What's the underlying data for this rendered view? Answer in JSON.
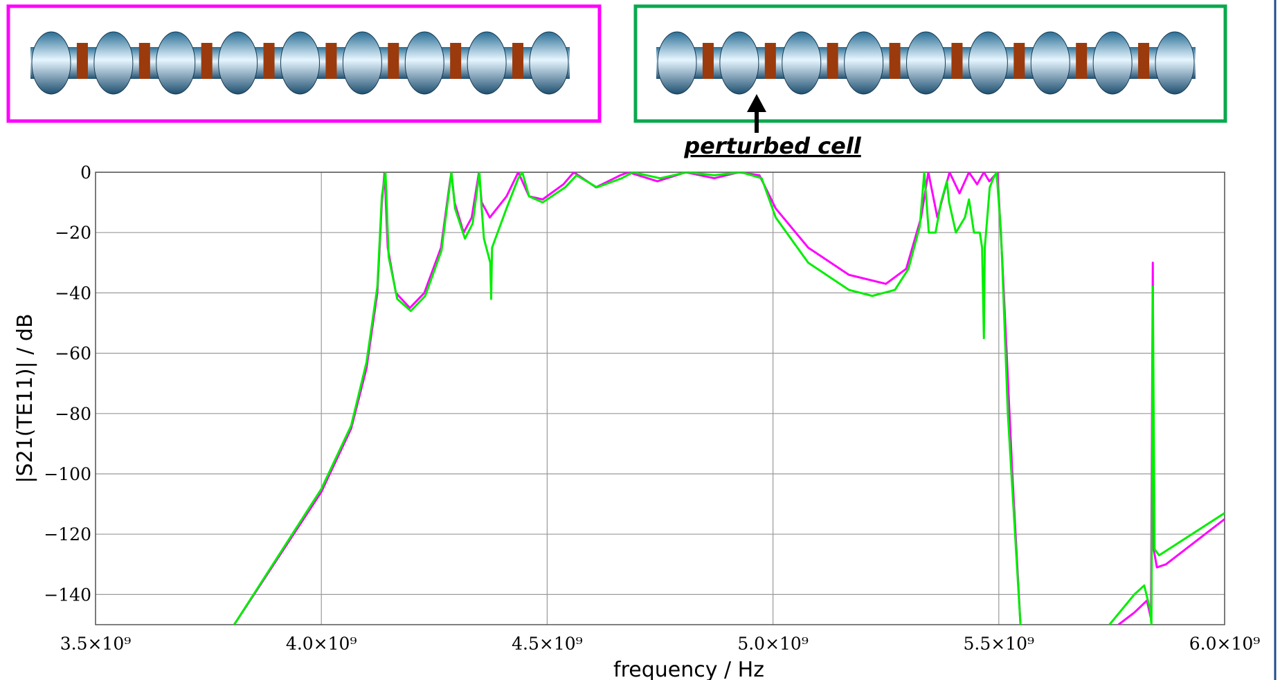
{
  "chart_data": {
    "type": "line",
    "annotations": [
      "perturbed cell"
    ],
    "x_label": "frequency / Hz",
    "y_label": "|S21(TE11)| / dB",
    "xlim": [
      3500000000.0,
      6000000000.0
    ],
    "ylim": [
      -150,
      0
    ],
    "xticks": [
      {
        "value": 3500000000.0,
        "label": "3.5×10⁹"
      },
      {
        "value": 4000000000.0,
        "label": "4.0×10⁹"
      },
      {
        "value": 4500000000.0,
        "label": "4.5×10⁹"
      },
      {
        "value": 5000000000.0,
        "label": "5.0×10⁹"
      },
      {
        "value": 5500000000.0,
        "label": "5.5×10⁹"
      },
      {
        "value": 6000000000.0,
        "label": "6.0×10⁹"
      }
    ],
    "yticks": [
      {
        "value": 0,
        "label": "0"
      },
      {
        "value": -20,
        "label": "−20"
      },
      {
        "value": -40,
        "label": "−40"
      },
      {
        "value": -60,
        "label": "−60"
      },
      {
        "value": -80,
        "label": "−80"
      },
      {
        "value": -100,
        "label": "−100"
      },
      {
        "value": -120,
        "label": "−120"
      },
      {
        "value": -140,
        "label": "−140"
      }
    ],
    "grid": true,
    "series": [
      {
        "color": "#ff00ff",
        "x": [
          3807000000.0,
          4000000000.0,
          4066000000.0,
          4100000000.0,
          4124000000.0,
          4134000000.0,
          4140000000.0,
          4147000000.0,
          4165000000.0,
          4196000000.0,
          4228000000.0,
          4265000000.0,
          4283000000.0,
          4288000000.0,
          4295000000.0,
          4315000000.0,
          4333000000.0,
          4349000000.0,
          4355000000.0,
          4373000000.0,
          4410000000.0,
          4436000000.0,
          4460000000.0,
          4490000000.0,
          4536000000.0,
          4559000000.0,
          4608000000.0,
          4662000000.0,
          4680000000.0,
          4744000000.0,
          4807000000.0,
          4870000000.0,
          4924000000.0,
          4970000000.0,
          5006000000.0,
          5078000000.0,
          5168000000.0,
          5250000000.0,
          5295000000.0,
          5328000000.0,
          5344000000.0,
          5364000000.0,
          5391000000.0,
          5413000000.0,
          5434000000.0,
          5452000000.0,
          5467000000.0,
          5479000000.0,
          5497000000.0,
          5508000000.0,
          5530000000.0,
          5548000000.0,
          5650000000.0,
          5765000000.0,
          5800000000.0,
          5828000000.0,
          5837000000.0,
          5841000000.0,
          5843000000.0,
          5850000000.0,
          5870000000.0,
          6000000000.0
        ],
        "values": [
          -150,
          -106,
          -85,
          -65,
          -40,
          -10,
          0,
          -25,
          -40,
          -45,
          -40,
          -25,
          -5,
          0,
          -10,
          -20,
          -15,
          0,
          -10,
          -15,
          -8,
          0,
          -8,
          -9,
          -4,
          0,
          -5,
          -1,
          0,
          -3,
          0,
          -2,
          0,
          -1,
          -12,
          -25,
          -34,
          -37,
          -32,
          -15,
          0,
          -15,
          0,
          -7,
          0,
          -4,
          0,
          -3,
          0,
          -30,
          -100,
          -150,
          null,
          -150,
          -146,
          -142,
          -148,
          -30,
          -125,
          -131,
          -130,
          -115
        ]
      },
      {
        "color": "#00ee00",
        "x": [
          3807000000.0,
          4000000000.0,
          4066000000.0,
          4100000000.0,
          4124000000.0,
          4134000000.0,
          4142000000.0,
          4149000000.0,
          4168000000.0,
          4198000000.0,
          4230000000.0,
          4266000000.0,
          4283000000.0,
          4288000000.0,
          4296000000.0,
          4318000000.0,
          4335000000.0,
          4350000000.0,
          4355000000.0,
          4360000000.0,
          4374000000.0,
          4376000000.0,
          4378000000.0,
          4410000000.0,
          4436000000.0,
          4445000000.0,
          4460000000.0,
          4490000000.0,
          4540000000.0,
          4565000000.0,
          4610000000.0,
          4665000000.0,
          4690000000.0,
          4750000000.0,
          4810000000.0,
          4870000000.0,
          4930000000.0,
          4975000000.0,
          5006000000.0,
          5078000000.0,
          5168000000.0,
          5220000000.0,
          5270000000.0,
          5300000000.0,
          5325000000.0,
          5335000000.0,
          5345000000.0,
          5360000000.0,
          5372000000.0,
          5385000000.0,
          5390000000.0,
          5405000000.0,
          5425000000.0,
          5434000000.0,
          5445000000.0,
          5458000000.0,
          5463000000.0,
          5467000000.0,
          5469000000.0,
          5480000000.0,
          5488000000.0,
          5495000000.0,
          5505000000.0,
          5520000000.0,
          5548000000.0,
          5650000000.0,
          5745000000.0,
          5800000000.0,
          5822000000.0,
          5835000000.0,
          5838000000.0,
          5841000000.0,
          5845000000.0,
          5855000000.0,
          6000000000.0
        ],
        "values": [
          -150,
          -105,
          -84,
          -63,
          -38,
          -8,
          0,
          -28,
          -42,
          -46,
          -41,
          -26,
          -6,
          0,
          -12,
          -22,
          -17,
          0,
          -12,
          -22,
          -30,
          -42,
          -25,
          -12,
          -2,
          0,
          -8,
          -10,
          -5,
          -1,
          -5,
          -2,
          0,
          -2,
          0,
          -1,
          0,
          -2,
          -15,
          -30,
          -39,
          -41,
          -39,
          -32,
          -18,
          0,
          -20,
          -20,
          -10,
          -3,
          -10,
          -20,
          -15,
          -9,
          -20,
          -20,
          -25,
          -55,
          -25,
          -5,
          -2,
          0,
          -20,
          -80,
          -150,
          null,
          -150,
          -140,
          -137,
          -145,
          -150,
          -38,
          -125,
          -127,
          -113
        ]
      }
    ]
  }
}
